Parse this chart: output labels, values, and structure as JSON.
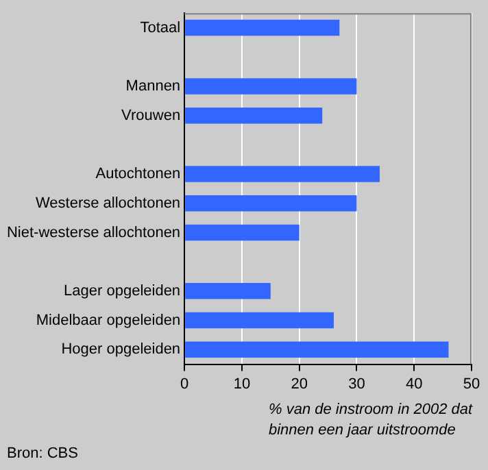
{
  "chart_data": {
    "type": "bar",
    "orientation": "horizontal",
    "categories": [
      "Totaal",
      null,
      "Mannen",
      "Vrouwen",
      null,
      "Autochtonen",
      "Westerse allochtonen",
      "Niet-westerse allochtonen",
      null,
      "Lager opgeleiden",
      "Midelbaar opgeleiden",
      "Hoger opgeleiden"
    ],
    "values": [
      27,
      null,
      30,
      24,
      null,
      34,
      30,
      20,
      null,
      15,
      26,
      46
    ],
    "color": "#3366ff",
    "xlim": [
      0,
      50
    ],
    "xticks": [
      0,
      10,
      20,
      30,
      40,
      50
    ],
    "xlabel": "% van de instroom in 2002 dat binnen een jaar uitstroomde",
    "annotations": [
      "Bron: CBS"
    ],
    "grid": "x",
    "legend": false
  }
}
